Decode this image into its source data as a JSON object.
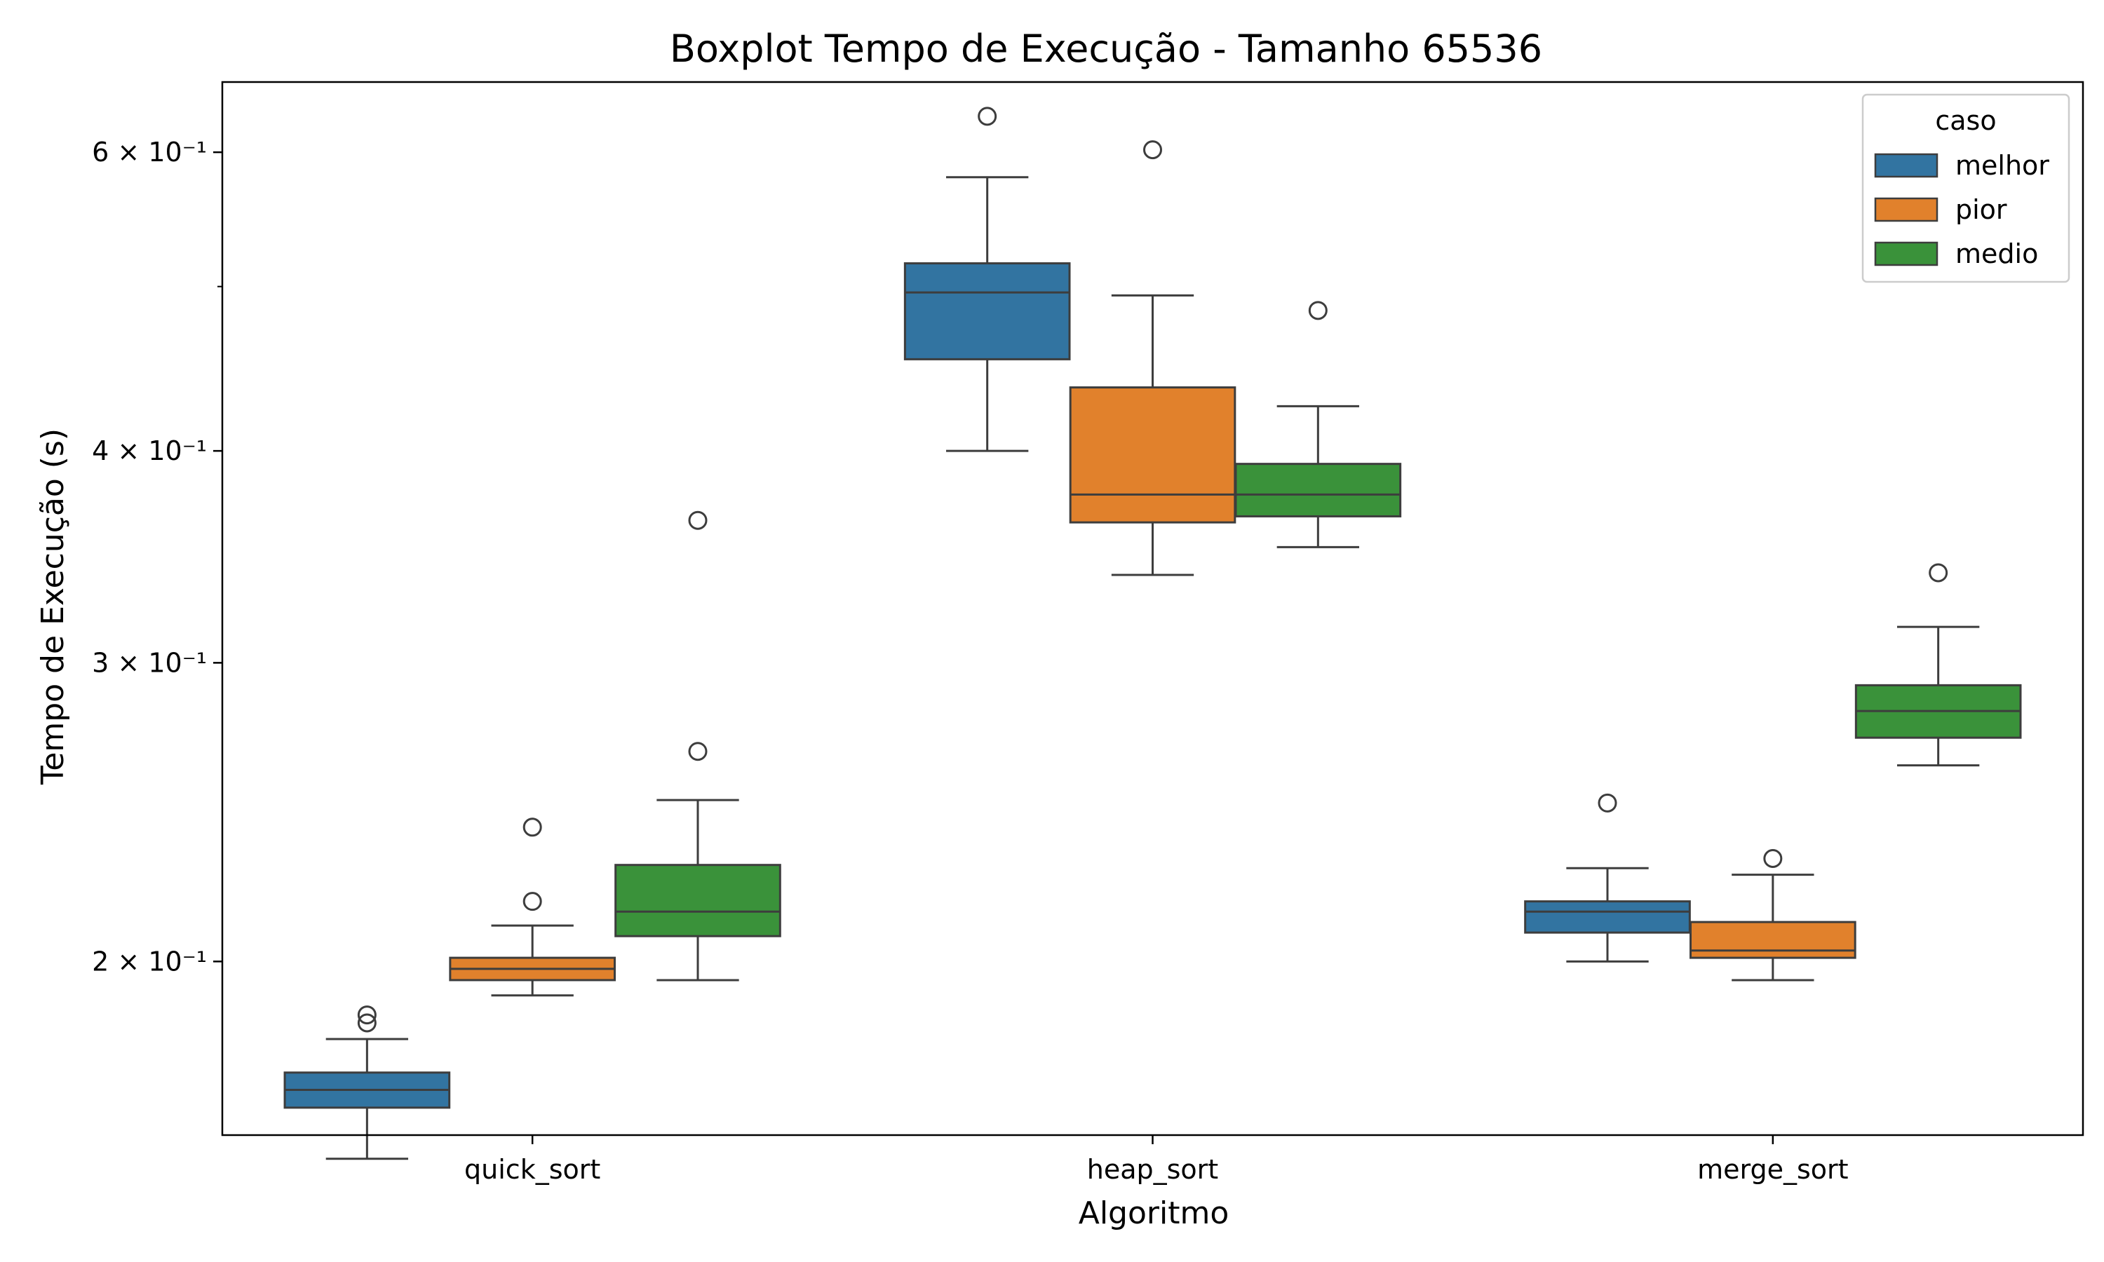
{
  "chart_data": {
    "type": "boxplot",
    "title": "Boxplot Tempo de Execução - Tamanho 65536",
    "xlabel": "Algoritmo",
    "ylabel": "Tempo de Execução (s)",
    "yscale": "log",
    "ylim": [
      0.158,
      0.66
    ],
    "yticks": [
      {
        "value": 0.2,
        "label": "2 × 10⁻¹"
      },
      {
        "value": 0.3,
        "label": "3 × 10⁻¹"
      },
      {
        "value": 0.4,
        "label": "4 × 10⁻¹"
      },
      {
        "value": 0.6,
        "label": "6 × 10⁻¹"
      }
    ],
    "yminorticks": [
      0.5
    ],
    "grid": false,
    "categories": [
      "quick_sort",
      "heap_sort",
      "merge_sort"
    ],
    "legend": {
      "title": "caso",
      "placement": "top-right"
    },
    "series": [
      {
        "name": "melhor",
        "color": "#3274a1",
        "boxes": [
          {
            "whisker_low": 0.153,
            "q1": 0.164,
            "median": 0.168,
            "q3": 0.172,
            "whisker_high": 0.18,
            "outliers": [
              0.184,
              0.186
            ]
          },
          {
            "whisker_low": 0.4,
            "q1": 0.453,
            "median": 0.496,
            "q3": 0.516,
            "whisker_high": 0.58,
            "outliers": [
              0.63
            ]
          },
          {
            "whisker_low": 0.2,
            "q1": 0.208,
            "median": 0.214,
            "q3": 0.217,
            "whisker_high": 0.227,
            "outliers": [
              0.248
            ]
          }
        ]
      },
      {
        "name": "pior",
        "color": "#e1812c",
        "boxes": [
          {
            "whisker_low": 0.191,
            "q1": 0.195,
            "median": 0.198,
            "q3": 0.201,
            "whisker_high": 0.21,
            "outliers": [
              0.217,
              0.24
            ]
          },
          {
            "whisker_low": 0.338,
            "q1": 0.363,
            "median": 0.377,
            "q3": 0.436,
            "whisker_high": 0.494,
            "outliers": [
              0.602
            ]
          },
          {
            "whisker_low": 0.195,
            "q1": 0.201,
            "median": 0.203,
            "q3": 0.211,
            "whisker_high": 0.225,
            "outliers": [
              0.23
            ]
          }
        ]
      },
      {
        "name": "medio",
        "color": "#3a923a",
        "boxes": [
          {
            "whisker_low": 0.195,
            "q1": 0.207,
            "median": 0.214,
            "q3": 0.228,
            "whisker_high": 0.249,
            "outliers": [
              0.266,
              0.364
            ]
          },
          {
            "whisker_low": 0.351,
            "q1": 0.366,
            "median": 0.377,
            "q3": 0.393,
            "whisker_high": 0.425,
            "outliers": [
              0.484
            ]
          },
          {
            "whisker_low": 0.261,
            "q1": 0.271,
            "median": 0.281,
            "q3": 0.291,
            "whisker_high": 0.315,
            "outliers": [
              0.339
            ]
          }
        ]
      }
    ]
  }
}
